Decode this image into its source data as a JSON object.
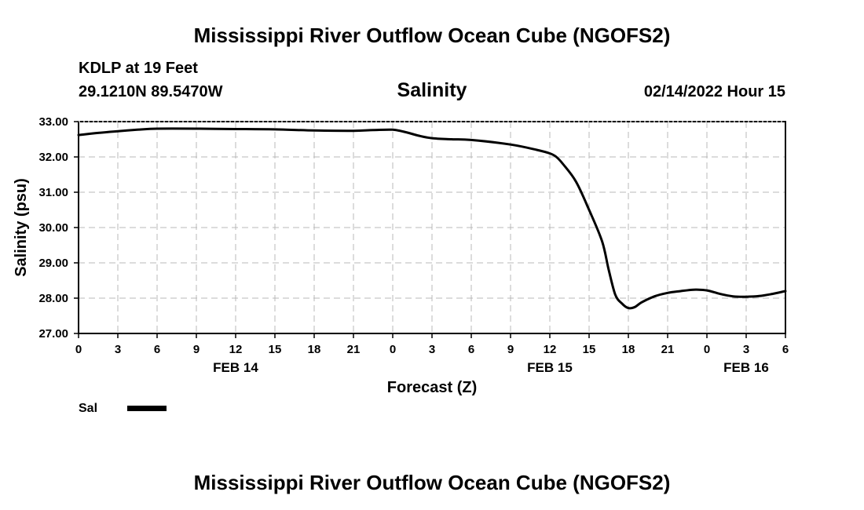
{
  "header": {
    "title": "Mississippi River Outflow Ocean Cube (NGOFS2)",
    "station": "KDLP at 19 Feet",
    "coords": "29.1210N  89.5470W",
    "subtitle": "Salinity",
    "datetime": "02/14/2022 Hour 15"
  },
  "footer": {
    "title": "Mississippi River Outflow Ocean Cube (NGOFS2)"
  },
  "chart_data": {
    "type": "line",
    "title": "Salinity",
    "xlabel": "Forecast (Z)",
    "ylabel": "Salinity (psu)",
    "ylim": [
      27.0,
      33.0
    ],
    "xlim": [
      0,
      54
    ],
    "yticks": [
      33.0,
      32.0,
      31.0,
      30.0,
      29.0,
      28.0,
      27.0
    ],
    "ytick_labels": [
      "33.00",
      "32.00",
      "31.00",
      "30.00",
      "29.00",
      "28.00",
      "27.00"
    ],
    "xtick_labels": [
      "0",
      "3",
      "6",
      "9",
      "12",
      "15",
      "18",
      "21",
      "0",
      "3",
      "6",
      "9",
      "12",
      "15",
      "18",
      "21",
      "0",
      "3",
      "6"
    ],
    "day_labels": [
      {
        "label": "FEB 14",
        "hour": 12
      },
      {
        "label": "FEB 15",
        "hour": 36
      },
      {
        "label": "FEB 16",
        "hour": 51
      }
    ],
    "grid": true,
    "legend": {
      "placement": "bottom-left",
      "entries": [
        "Sal"
      ]
    },
    "series": [
      {
        "name": "Sal",
        "color": "#000000",
        "x": [
          0,
          1.5,
          3,
          4.5,
          6,
          9,
          12,
          15,
          18,
          21,
          22.5,
          24,
          25,
          26,
          27,
          28.5,
          30,
          33,
          35,
          36,
          36.5,
          37,
          38,
          39,
          40,
          40.5,
          41,
          41.5,
          42,
          42.5,
          43,
          44,
          45,
          46,
          47,
          48,
          49,
          50,
          51,
          52,
          53,
          54
        ],
        "values": [
          32.62,
          32.68,
          32.73,
          32.77,
          32.8,
          32.8,
          32.79,
          32.78,
          32.75,
          32.74,
          32.76,
          32.77,
          32.7,
          32.6,
          32.53,
          32.5,
          32.48,
          32.35,
          32.2,
          32.1,
          32.0,
          31.8,
          31.3,
          30.5,
          29.6,
          28.8,
          28.1,
          27.85,
          27.72,
          27.75,
          27.88,
          28.05,
          28.15,
          28.2,
          28.24,
          28.22,
          28.12,
          28.05,
          28.04,
          28.06,
          28.12,
          28.2
        ]
      }
    ]
  }
}
